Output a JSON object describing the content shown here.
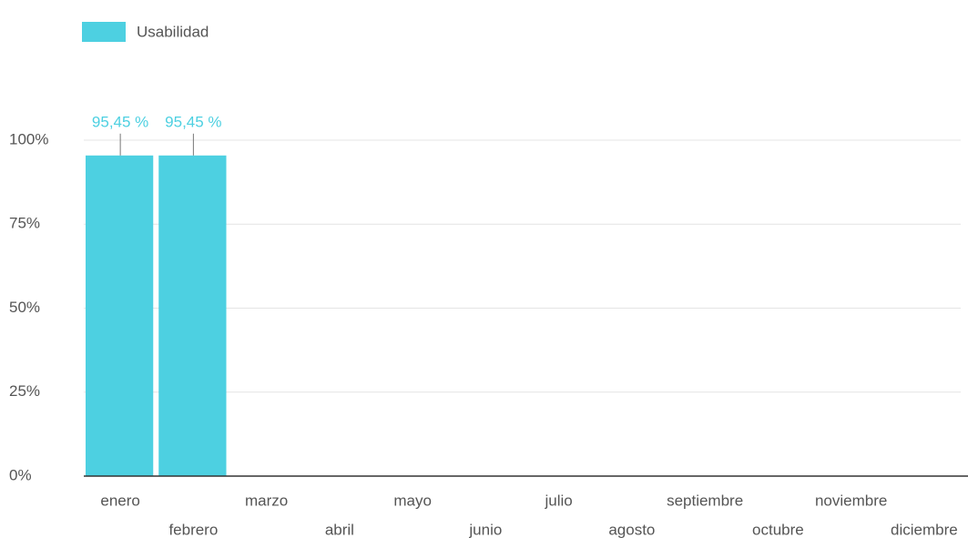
{
  "chart_data": {
    "type": "bar",
    "legend": "Usabilidad",
    "color": "#4dd0e1",
    "categories": [
      "enero",
      "febrero",
      "marzo",
      "abril",
      "mayo",
      "junio",
      "julio",
      "agosto",
      "septiembre",
      "octubre",
      "noviembre",
      "diciembre"
    ],
    "values": [
      95.45,
      95.45,
      null,
      null,
      null,
      null,
      null,
      null,
      null,
      null,
      null,
      null
    ],
    "value_labels": [
      "95,45 %",
      "95,45 %",
      null,
      null,
      null,
      null,
      null,
      null,
      null,
      null,
      null,
      null
    ],
    "ylim": [
      0,
      100
    ],
    "yticks": [
      {
        "value": 0,
        "label": "0%"
      },
      {
        "value": 25,
        "label": "25%"
      },
      {
        "value": 50,
        "label": "50%"
      },
      {
        "value": 75,
        "label": "75%"
      },
      {
        "value": 100,
        "label": "100%"
      }
    ],
    "grid": true
  }
}
